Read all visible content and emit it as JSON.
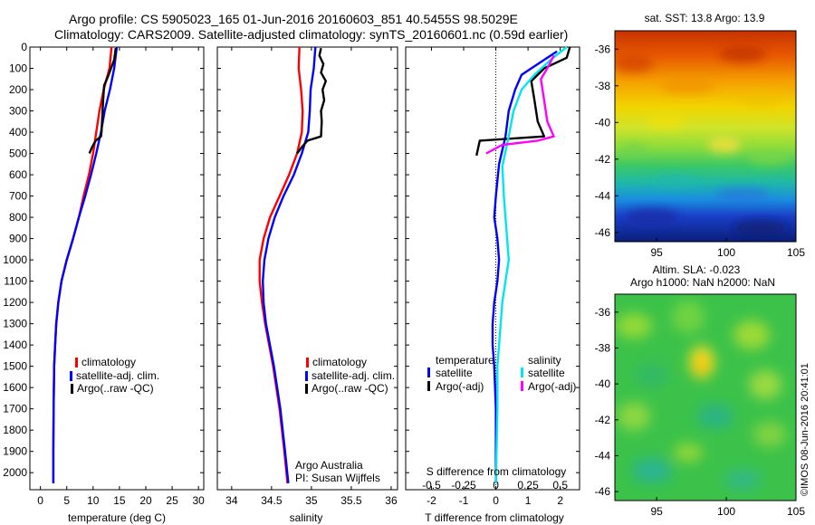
{
  "header": {
    "line1": "Argo profile: CS 5905023_165 01-Jun-2016 20160603_851 40.5455S 98.5029E",
    "line2": "Climatology: CARS2009. Satellite-adjusted climatology: synTS_20160601.nc (0.59d earlier)"
  },
  "watermark": "©IMOS 08-Jun-2016 20:41:01",
  "colors": {
    "climatology": "#ff0000",
    "satellite": "#0000ff",
    "argo": "#000000",
    "satellite_salinity": "#00e5ee",
    "argo_salinity": "#ff00ff"
  },
  "chart_data": [
    {
      "type": "line",
      "panel": "temperature",
      "xlabel": "temperature (deg C)",
      "ylabel": "",
      "xlim": [
        -2,
        31
      ],
      "ylim": [
        2080,
        0
      ],
      "y_reversed": true,
      "xticks": [
        0,
        5,
        10,
        15,
        20,
        25,
        30
      ],
      "xtick_labels": [
        "0",
        "5",
        "10",
        "15",
        "20",
        "25",
        "30"
      ],
      "yticks": [
        0,
        100,
        200,
        300,
        400,
        500,
        600,
        700,
        800,
        900,
        1000,
        1100,
        1200,
        1300,
        1400,
        1500,
        1600,
        1700,
        1800,
        1900,
        2000
      ],
      "ytick_labels": [
        "0",
        "100",
        "200",
        "300",
        "400",
        "500",
        "600",
        "700",
        "800",
        "900",
        "1000",
        "1100",
        "1200",
        "1300",
        "1400",
        "1500",
        "1600",
        "1700",
        "1800",
        "1900",
        "2000"
      ],
      "legend_position": "bottom-right",
      "series": [
        {
          "name": "climatology",
          "color": "#ff0000",
          "x": [
            13.5,
            13.1,
            12.0,
            11.2,
            10.6,
            10.0,
            9.2,
            8.2,
            7.3,
            6.2,
            5.0,
            4.0,
            3.4,
            3.0,
            2.8,
            2.6,
            2.5,
            2.45,
            2.45
          ],
          "y": [
            0,
            100,
            200,
            300,
            400,
            500,
            600,
            700,
            800,
            900,
            1000,
            1100,
            1200,
            1300,
            1400,
            1500,
            1700,
            1900,
            2050
          ]
        },
        {
          "name": "satellite-adj. clim.",
          "color": "#0000ff",
          "x": [
            14.5,
            14.0,
            13.2,
            12.2,
            11.5,
            10.6,
            9.6,
            8.5,
            7.3,
            6.2,
            5.0,
            4.0,
            3.4,
            3.0,
            2.8,
            2.6,
            2.5,
            2.45,
            2.45
          ],
          "y": [
            0,
            100,
            200,
            300,
            400,
            500,
            600,
            700,
            800,
            900,
            1000,
            1100,
            1200,
            1300,
            1400,
            1500,
            1700,
            1900,
            2050
          ]
        },
        {
          "name": "Argo(..raw -QC)",
          "color": "#000000",
          "x": [
            14.3,
            14.0,
            13.4,
            12.8,
            12.1,
            11.9,
            11.8,
            11.7,
            11.6,
            11.5,
            10.5,
            9.8,
            9.3
          ],
          "y": [
            5,
            60,
            100,
            140,
            180,
            250,
            300,
            350,
            400,
            420,
            440,
            470,
            500
          ]
        }
      ]
    },
    {
      "type": "line",
      "panel": "salinity",
      "xlabel": "salinity",
      "ylabel": "",
      "xlim": [
        33.82,
        36.08
      ],
      "ylim": [
        2080,
        0
      ],
      "y_reversed": true,
      "xticks": [
        34,
        34.5,
        35,
        35.5,
        36
      ],
      "xtick_labels": [
        "34",
        "34.5",
        "35",
        "35.5",
        "36"
      ],
      "legend_position": "bottom-right",
      "annotation": [
        "Argo Australia",
        "PI: Susan Wijffels"
      ],
      "series": [
        {
          "name": "climatology",
          "color": "#ff0000",
          "x": [
            34.85,
            34.84,
            34.87,
            34.89,
            34.88,
            34.82,
            34.72,
            34.6,
            34.48,
            34.4,
            34.35,
            34.35,
            34.38,
            34.42,
            34.47,
            34.52,
            34.6,
            34.66,
            34.7
          ],
          "y": [
            0,
            100,
            200,
            300,
            400,
            500,
            600,
            700,
            800,
            900,
            1000,
            1100,
            1200,
            1300,
            1400,
            1500,
            1700,
            1900,
            2050
          ]
        },
        {
          "name": "satellite-adj. clim.",
          "color": "#0000ff",
          "x": [
            35.05,
            35.03,
            34.99,
            34.98,
            34.96,
            34.88,
            34.78,
            34.65,
            34.54,
            34.46,
            34.41,
            34.39,
            34.4,
            34.43,
            34.48,
            34.53,
            34.61,
            34.67,
            34.71
          ],
          "y": [
            0,
            100,
            200,
            300,
            400,
            500,
            600,
            700,
            800,
            900,
            1000,
            1100,
            1200,
            1300,
            1400,
            1500,
            1700,
            1900,
            2050
          ]
        },
        {
          "name": "Argo(..raw -QC)",
          "color": "#000000",
          "x": [
            35.12,
            35.1,
            35.15,
            35.12,
            35.18,
            35.14,
            35.16,
            35.12,
            35.13,
            35.12,
            34.95,
            34.88,
            34.82
          ],
          "y": [
            5,
            40,
            80,
            120,
            160,
            200,
            250,
            300,
            350,
            420,
            440,
            470,
            500
          ]
        }
      ]
    },
    {
      "type": "line",
      "panel": "difference",
      "xlabel": "T difference from climatology",
      "ylabel": "",
      "xlim": [
        -2.8,
        2.6
      ],
      "ylim": [
        2080,
        0
      ],
      "y_reversed": true,
      "xticks": [
        -2,
        -1,
        0,
        1,
        2
      ],
      "xtick_labels": [
        "-2",
        "-1",
        "0",
        "1",
        "2"
      ],
      "top_axis_label": "S difference from climatology",
      "top_xticks": [
        -0.5,
        -0.25,
        0,
        0.25,
        0.5
      ],
      "top_xtick_labels": [
        "-0.5",
        "-0.25",
        "0",
        "0.25",
        "0.5"
      ],
      "legend_position": "bottom-right",
      "legend_headers": [
        "temperature",
        "salinity"
      ],
      "series": [
        {
          "name": "satellite",
          "group": "temperature",
          "color": "#0000ff",
          "x": [
            1.9,
            1.4,
            0.8,
            0.6,
            0.4,
            0.3,
            0.1,
            0.0,
            -0.05,
            0.05,
            0.1,
            0.05,
            -0.05,
            -0.1,
            -0.1,
            -0.05,
            0.0,
            0.0,
            0.0
          ],
          "y": [
            20,
            70,
            130,
            200,
            300,
            420,
            550,
            700,
            800,
            900,
            1000,
            1100,
            1200,
            1300,
            1400,
            1500,
            1700,
            1900,
            2050
          ]
        },
        {
          "name": "Argo(-adj)",
          "group": "temperature",
          "color": "#000000",
          "x": [
            2.3,
            2.2,
            1.5,
            1.1,
            1.2,
            1.3,
            1.5,
            -0.5,
            -0.6
          ],
          "y": [
            0,
            50,
            100,
            160,
            250,
            350,
            420,
            440,
            510
          ]
        },
        {
          "name": "satellite",
          "group": "salinity",
          "color": "#00e5ee",
          "x": [
            2.2,
            1.7,
            1.2,
            0.8,
            0.55,
            0.4,
            0.2,
            0.25,
            0.3,
            0.35,
            0.4,
            0.3,
            0.2,
            0.15,
            0.1,
            0.05,
            0.05,
            0.0
          ],
          "y": [
            0,
            60,
            130,
            200,
            300,
            420,
            560,
            700,
            800,
            900,
            1000,
            1100,
            1200,
            1300,
            1400,
            1500,
            1700,
            2050
          ]
        },
        {
          "name": "Argo(-adj)",
          "group": "salinity",
          "color": "#ff00ff",
          "x": [
            1.8,
            1.6,
            1.4,
            1.5,
            1.6,
            1.8,
            1.3,
            0.2,
            -0.3
          ],
          "y": [
            40,
            100,
            150,
            250,
            350,
            420,
            440,
            460,
            500
          ]
        }
      ]
    },
    {
      "type": "heatmap",
      "panel": "sst-map",
      "title": "sat. SST: 13.8 Argo: 13.9",
      "xlim": [
        92,
        105
      ],
      "ylim": [
        -46.5,
        -35
      ],
      "xticks": [
        95,
        100,
        105
      ],
      "xtick_labels": [
        "95",
        "100",
        "105"
      ],
      "yticks": [
        -36,
        -38,
        -40,
        -42,
        -44,
        -46
      ],
      "ytick_labels": [
        "-36",
        "-38",
        "-40",
        "-42",
        "-44",
        "-46"
      ],
      "colormap": "jet",
      "value_range_degC": [
        8,
        18
      ]
    },
    {
      "type": "heatmap",
      "panel": "sla-map",
      "title_lines": [
        "Altim. SLA: -0.023",
        "Argo h1000: NaN h2000: NaN"
      ],
      "xlim": [
        92,
        105
      ],
      "ylim": [
        -46.5,
        -35
      ],
      "xticks": [
        95,
        100,
        105
      ],
      "xtick_labels": [
        "95",
        "100",
        "105"
      ],
      "yticks": [
        -36,
        -38,
        -40,
        -42,
        -44,
        -46
      ],
      "ytick_labels": [
        "-36",
        "-38",
        "-40",
        "-42",
        "-44",
        "-46"
      ],
      "colormap": "jet"
    }
  ]
}
